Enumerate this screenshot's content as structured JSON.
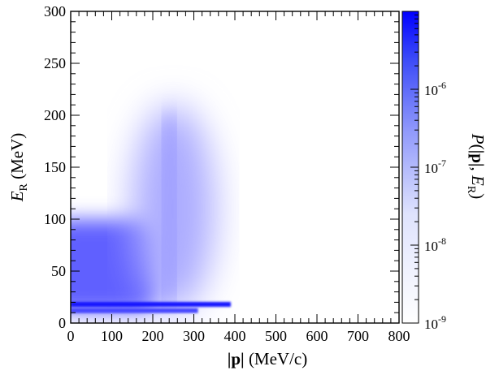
{
  "chart_data": {
    "type": "heatmap",
    "title": "",
    "xlabel": {
      "bold": "|p|",
      "rest": " (MeV/c)"
    },
    "ylabel": {
      "main": "E",
      "sub": "R",
      "rest": " (MeV)"
    },
    "zlabel": {
      "P": "P",
      "open": "(",
      "p": "|p|",
      "comma": ", ",
      "E": "E",
      "sub": "R",
      "close": ")"
    },
    "xlim": [
      0,
      800
    ],
    "ylim": [
      0,
      300
    ],
    "zlim": [
      1e-09,
      1e-05
    ],
    "zscale": "log",
    "x_ticks": [
      "0",
      "100",
      "200",
      "300",
      "400",
      "500",
      "600",
      "700",
      "800"
    ],
    "y_ticks": [
      "0",
      "50",
      "100",
      "150",
      "200",
      "250",
      "300"
    ],
    "colorbar_ticks": [
      {
        "base": "10",
        "exp": "-9",
        "value": 1e-09
      },
      {
        "base": "10",
        "exp": "-8",
        "value": 1e-08
      },
      {
        "base": "10",
        "exp": "-7",
        "value": 1e-07
      },
      {
        "base": "10",
        "exp": "-6",
        "value": 1e-06
      }
    ],
    "colormap": {
      "low": "#ffffff",
      "high": "#0000ff"
    },
    "grid": false,
    "regions": [
      {
        "name": "low-energy lobe",
        "p_range": [
          0,
          220
        ],
        "E_center": 55,
        "E_width": 45,
        "peak": 3e-07
      },
      {
        "name": "quasi-elastic disk",
        "p_center": 250,
        "E_center": 110,
        "radius": 100,
        "peak": 2e-08
      },
      {
        "name": "vertical ridge",
        "p_center": 240,
        "E_range": [
          20,
          200
        ],
        "peak": 5e-08
      },
      {
        "name": "bound-state band 1",
        "p_range": [
          0,
          390
        ],
        "E": 18,
        "peak": 5e-06
      },
      {
        "name": "bound-state band 2",
        "p_range": [
          0,
          310
        ],
        "E": 12,
        "peak": 8e-07
      }
    ]
  }
}
